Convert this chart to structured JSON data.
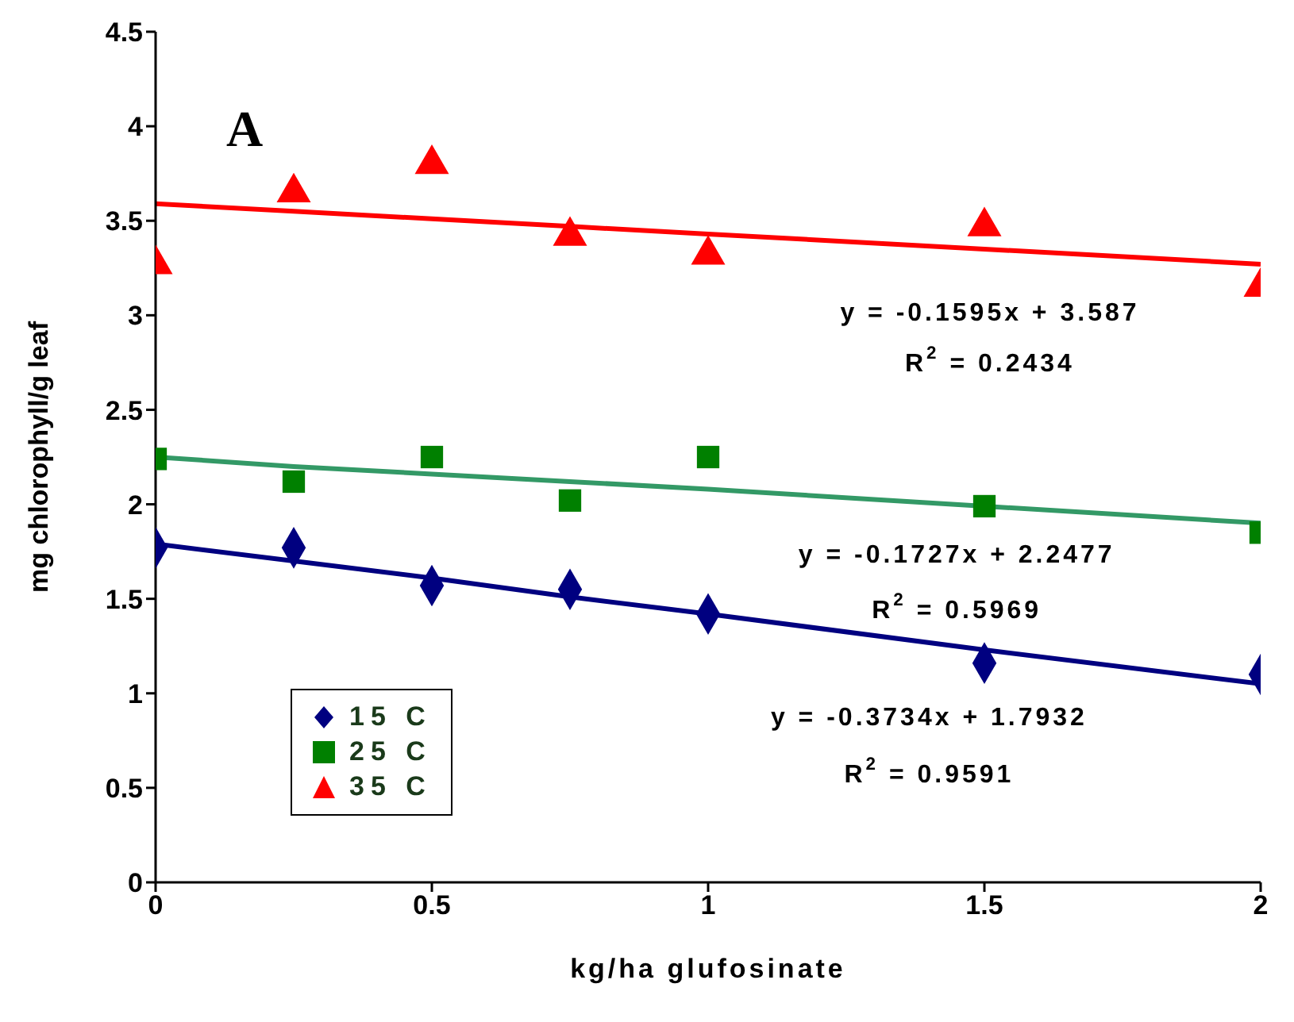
{
  "chart_data": {
    "type": "scatter",
    "xlabel": "kg/ha glufosinate",
    "ylabel": "mg chlorophyll/g leaf",
    "x": [
      0,
      0.25,
      0.5,
      0.75,
      1,
      1.5,
      2
    ],
    "series": [
      {
        "name": "15 C",
        "color": "#000080",
        "marker": "diamond",
        "values": [
          1.77,
          1.77,
          1.57,
          1.55,
          1.42,
          1.16,
          1.1
        ]
      },
      {
        "name": "25 C",
        "color": "#008000",
        "marker": "square",
        "values": [
          2.24,
          2.12,
          2.25,
          2.02,
          2.25,
          1.99,
          1.85
        ]
      },
      {
        "name": "35 C",
        "color": "#ff0000",
        "marker": "triangle",
        "values": [
          3.27,
          3.65,
          3.8,
          3.42,
          3.32,
          3.47,
          3.15
        ]
      },
      {
        "type": "line",
        "color": "#000080",
        "marker": "none",
        "values": [
          1.79,
          1.7,
          1.61,
          1.51,
          1.42,
          1.23,
          1.05
        ]
      },
      {
        "type": "line",
        "color": "#339966",
        "marker": "none",
        "values": [
          2.25,
          2.2,
          2.16,
          2.12,
          2.08,
          1.99,
          1.9
        ]
      },
      {
        "type": "line",
        "color": "#ff0000",
        "marker": "none",
        "values": [
          3.59,
          3.55,
          3.51,
          3.47,
          3.43,
          3.35,
          3.27
        ]
      }
    ],
    "xlim": [
      0,
      2
    ],
    "xticks": [
      0,
      0.5,
      1,
      1.5,
      2
    ],
    "ylim": [
      0,
      4.5
    ],
    "yticks": [
      0,
      0.5,
      1,
      1.5,
      2,
      2.5,
      3,
      3.5,
      4,
      4.5
    ],
    "legend": "bottom left",
    "grid": false,
    "annotations": [
      "A",
      "y = -0.1595x + 3.587",
      "R$^{2}$ = 0.2434",
      "y = -0.1727x + 2.2477",
      "R$^{2}$ = 0.5969",
      "y = -0.3734x + 1.7932",
      "R$^{2}$ = 0.9591"
    ]
  }
}
